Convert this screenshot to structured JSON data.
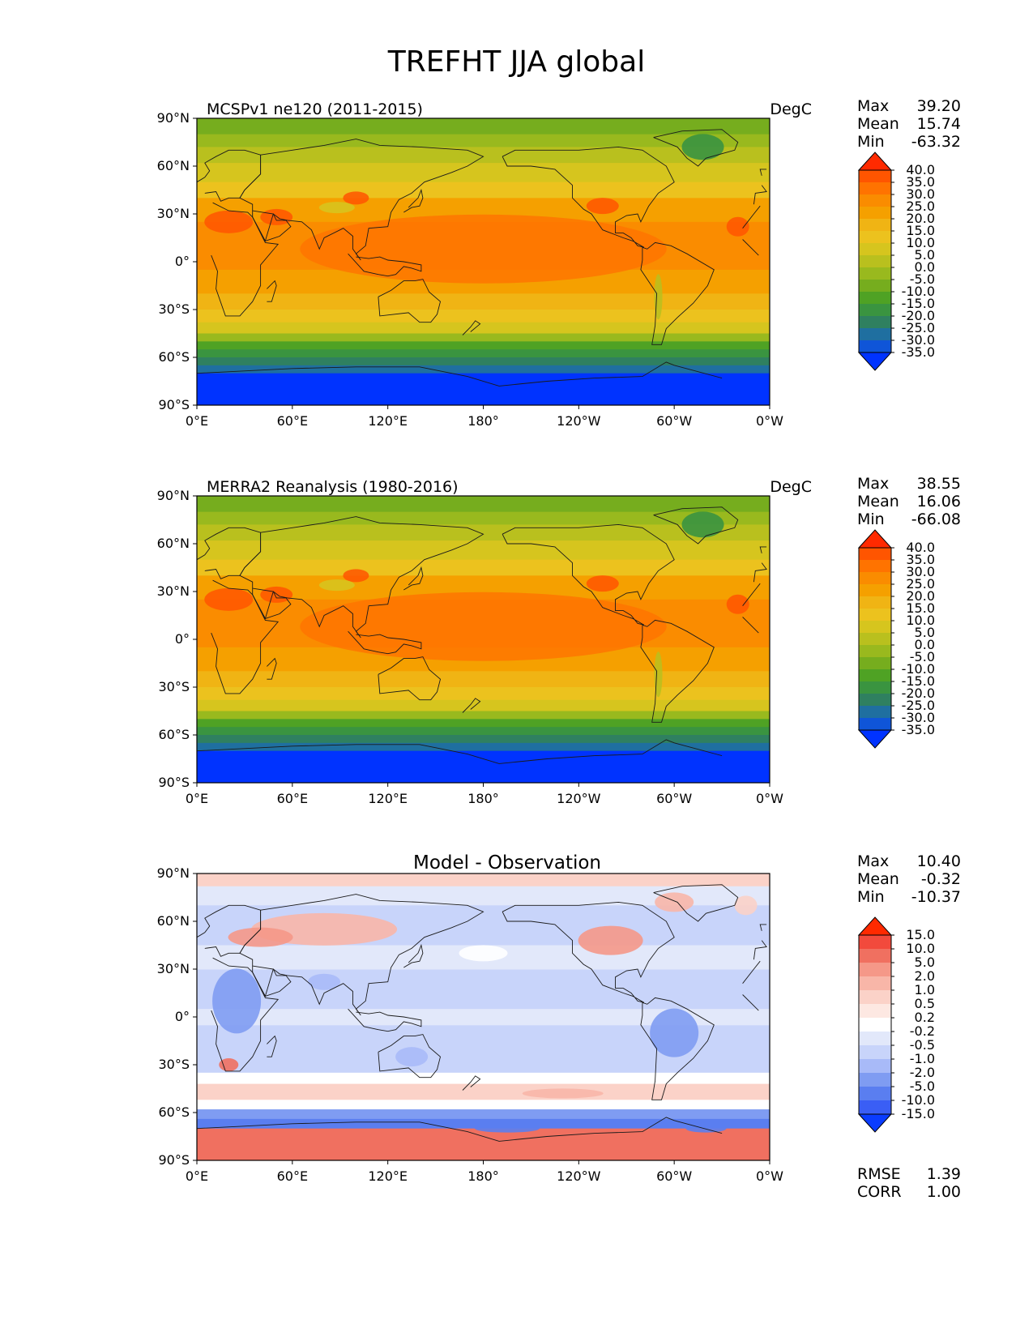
{
  "figure_title": "TREFHT JJA global",
  "lat_ticks": [
    "90°N",
    "60°N",
    "30°N",
    "0°",
    "30°S",
    "60°S",
    "90°S"
  ],
  "lon_ticks": [
    "0°E",
    "60°E",
    "120°E",
    "180°",
    "120°W",
    "60°W",
    "0°W"
  ],
  "panels": [
    {
      "id": "model",
      "title_left": "MCSPv1 ne120 (2011-2015)",
      "title_right": "DegC",
      "title_center": "",
      "stats": [
        {
          "label": "Max",
          "value": "39.20"
        },
        {
          "label": "Mean",
          "value": "15.74"
        },
        {
          "label": "Min",
          "value": "-63.32"
        }
      ],
      "colorbar": {
        "labels": [
          "40.0",
          "35.0",
          "30.0",
          "25.0",
          "20.0",
          "15.0",
          "10.0",
          "5.0",
          "0.0",
          "-5.0",
          "-10.0",
          "-15.0",
          "-20.0",
          "-25.0",
          "-30.0",
          "-35.0"
        ],
        "colors": [
          "#ff2a00",
          "#ff5500",
          "#ff7300",
          "#fa8c00",
          "#f5a000",
          "#f0b414",
          "#ecc21e",
          "#d6c51e",
          "#b9c01e",
          "#99b91e",
          "#76ad1e",
          "#4fa224",
          "#3a9440",
          "#2f8060",
          "#1f6fa0",
          "#0f55d8",
          "#0033ff"
        ]
      },
      "field": "absolute"
    },
    {
      "id": "obs",
      "title_left": "MERRA2 Reanalysis (1980-2016)",
      "title_right": "DegC",
      "title_center": "",
      "stats": [
        {
          "label": "Max",
          "value": "38.55"
        },
        {
          "label": "Mean",
          "value": "16.06"
        },
        {
          "label": "Min",
          "value": "-66.08"
        }
      ],
      "colorbar": {
        "labels": [
          "40.0",
          "35.0",
          "30.0",
          "25.0",
          "20.0",
          "15.0",
          "10.0",
          "5.0",
          "0.0",
          "-5.0",
          "-10.0",
          "-15.0",
          "-20.0",
          "-25.0",
          "-30.0",
          "-35.0"
        ],
        "colors": [
          "#ff2a00",
          "#ff5500",
          "#ff7300",
          "#fa8c00",
          "#f5a000",
          "#f0b414",
          "#ecc21e",
          "#d6c51e",
          "#b9c01e",
          "#99b91e",
          "#76ad1e",
          "#4fa224",
          "#3a9440",
          "#2f8060",
          "#1f6fa0",
          "#0f55d8",
          "#0033ff"
        ]
      },
      "field": "absolute"
    },
    {
      "id": "diff",
      "title_left": "",
      "title_right": "",
      "title_center": "Model - Observation",
      "stats": [
        {
          "label": "Max",
          "value": "10.40"
        },
        {
          "label": "Mean",
          "value": "-0.32"
        },
        {
          "label": "Min",
          "value": "-10.37"
        }
      ],
      "extra_stats": [
        {
          "label": "RMSE",
          "value": "1.39"
        },
        {
          "label": "CORR",
          "value": "1.00"
        }
      ],
      "colorbar": {
        "labels": [
          "15.0",
          "10.0",
          "5.0",
          "2.0",
          "1.0",
          "0.5",
          "0.2",
          "-0.2",
          "-0.5",
          "-1.0",
          "-2.0",
          "-5.0",
          "-10.0",
          "-15.0"
        ],
        "colors": [
          "#ff2a00",
          "#f24a3c",
          "#f07060",
          "#f59888",
          "#f8b6a8",
          "#fbd2c8",
          "#fde8e2",
          "#ffffff",
          "#e2e8fa",
          "#c8d4fa",
          "#a8baf8",
          "#7f9cf2",
          "#5a7ef0",
          "#3a5ef5",
          "#0a3cff"
        ]
      },
      "field": "difference"
    }
  ],
  "chart_data": [
    {
      "type": "heatmap",
      "title": "MCSPv1 ne120 (2011-2015)",
      "units": "DegC",
      "x_ticks": [
        "0°E",
        "60°E",
        "120°E",
        "180°",
        "120°W",
        "60°W",
        "0°W"
      ],
      "y_ticks": [
        "90°N",
        "60°N",
        "30°N",
        "0°",
        "30°S",
        "60°S",
        "90°S"
      ],
      "xlim": [
        0,
        360
      ],
      "ylim": [
        -90,
        90
      ],
      "levels": [
        -35,
        -30,
        -25,
        -20,
        -15,
        -10,
        -5,
        0,
        5,
        10,
        15,
        20,
        25,
        30,
        35,
        40
      ],
      "max": 39.2,
      "mean": 15.74,
      "min": -63.32
    },
    {
      "type": "heatmap",
      "title": "MERRA2 Reanalysis (1980-2016)",
      "units": "DegC",
      "x_ticks": [
        "0°E",
        "60°E",
        "120°E",
        "180°",
        "120°W",
        "60°W",
        "0°W"
      ],
      "y_ticks": [
        "90°N",
        "60°N",
        "30°N",
        "0°",
        "30°S",
        "60°S",
        "90°S"
      ],
      "xlim": [
        0,
        360
      ],
      "ylim": [
        -90,
        90
      ],
      "levels": [
        -35,
        -30,
        -25,
        -20,
        -15,
        -10,
        -5,
        0,
        5,
        10,
        15,
        20,
        25,
        30,
        35,
        40
      ],
      "max": 38.55,
      "mean": 16.06,
      "min": -66.08
    },
    {
      "type": "heatmap",
      "title": "Model - Observation",
      "x_ticks": [
        "0°E",
        "60°E",
        "120°E",
        "180°",
        "120°W",
        "60°W",
        "0°W"
      ],
      "y_ticks": [
        "90°N",
        "60°N",
        "30°N",
        "0°",
        "30°S",
        "60°S",
        "90°S"
      ],
      "xlim": [
        0,
        360
      ],
      "ylim": [
        -90,
        90
      ],
      "levels": [
        -15,
        -10,
        -5,
        -2,
        -1,
        -0.5,
        -0.2,
        0.2,
        0.5,
        1,
        2,
        5,
        10,
        15
      ],
      "max": 10.4,
      "mean": -0.32,
      "min": -10.37,
      "rmse": 1.39,
      "corr": 1.0
    }
  ]
}
